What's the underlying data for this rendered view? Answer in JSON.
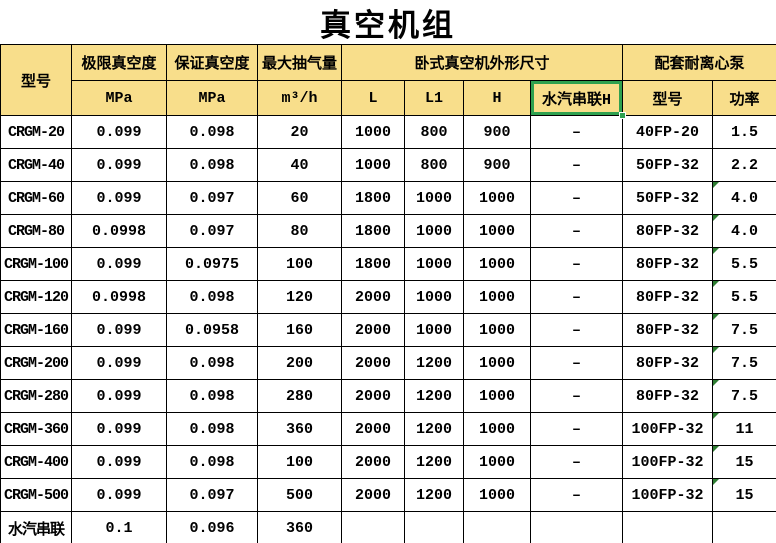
{
  "title": "真空机组",
  "colors": {
    "header_bg": "#F8DE8B",
    "grid_line": "#000000",
    "selection_green": "#2FA14F",
    "error_triangle_green": "#2E7D32",
    "text": "#000000"
  },
  "header": {
    "row1": {
      "model": "型号",
      "ultimate_vacuum": "极限真空度",
      "guaranteed_vacuum": "保证真空度",
      "max_capacity": "最大抽气量",
      "dimensions_group": "卧式真空机外形尺寸",
      "pump_group": "配套耐离心泵"
    },
    "row2": {
      "mpa_ultimate": "MPa",
      "mpa_guaranteed": "MPa",
      "m3_per_h": "m³/h",
      "L": "L",
      "L1": "L1",
      "H": "H",
      "steam_series_h": "水汽串联H",
      "pump_model": "型号",
      "pump_power": "功率"
    }
  },
  "selection": {
    "selected_cell": "水汽串联H"
  },
  "rows": [
    {
      "model": "CRGM-20",
      "ultimate": "0.099",
      "guaranteed": "0.098",
      "capacity": "20",
      "L": "1000",
      "L1": "800",
      "H": "900",
      "steamH": "–",
      "pump": "40FP-20",
      "power": "1.5",
      "flag": false
    },
    {
      "model": "CRGM-40",
      "ultimate": "0.099",
      "guaranteed": "0.098",
      "capacity": "40",
      "L": "1000",
      "L1": "800",
      "H": "900",
      "steamH": "–",
      "pump": "50FP-32",
      "power": "2.2",
      "flag": false
    },
    {
      "model": "CRGM-60",
      "ultimate": "0.099",
      "guaranteed": "0.097",
      "capacity": "60",
      "L": "1800",
      "L1": "1000",
      "H": "1000",
      "steamH": "–",
      "pump": "50FP-32",
      "power": "4.0",
      "flag": true
    },
    {
      "model": "CRGM-80",
      "ultimate": "0.0998",
      "guaranteed": "0.097",
      "capacity": "80",
      "L": "1800",
      "L1": "1000",
      "H": "1000",
      "steamH": "–",
      "pump": "80FP-32",
      "power": "4.0",
      "flag": true
    },
    {
      "model": "CRGM-100",
      "ultimate": "0.099",
      "guaranteed": "0.0975",
      "capacity": "100",
      "L": "1800",
      "L1": "1000",
      "H": "1000",
      "steamH": "–",
      "pump": "80FP-32",
      "power": "5.5",
      "flag": true
    },
    {
      "model": "CRGM-120",
      "ultimate": "0.0998",
      "guaranteed": "0.098",
      "capacity": "120",
      "L": "2000",
      "L1": "1000",
      "H": "1000",
      "steamH": "–",
      "pump": "80FP-32",
      "power": "5.5",
      "flag": true
    },
    {
      "model": "CRGM-160",
      "ultimate": "0.099",
      "guaranteed": "0.0958",
      "capacity": "160",
      "L": "2000",
      "L1": "1000",
      "H": "1000",
      "steamH": "–",
      "pump": "80FP-32",
      "power": "7.5",
      "flag": true
    },
    {
      "model": "CRGM-200",
      "ultimate": "0.099",
      "guaranteed": "0.098",
      "capacity": "200",
      "L": "2000",
      "L1": "1200",
      "H": "1000",
      "steamH": "–",
      "pump": "80FP-32",
      "power": "7.5",
      "flag": true
    },
    {
      "model": "CRGM-280",
      "ultimate": "0.099",
      "guaranteed": "0.098",
      "capacity": "280",
      "L": "2000",
      "L1": "1200",
      "H": "1000",
      "steamH": "–",
      "pump": "80FP-32",
      "power": "7.5",
      "flag": true
    },
    {
      "model": "CRGM-360",
      "ultimate": "0.099",
      "guaranteed": "0.098",
      "capacity": "360",
      "L": "2000",
      "L1": "1200",
      "H": "1000",
      "steamH": "–",
      "pump": "100FP-32",
      "power": "11",
      "flag": true
    },
    {
      "model": "CRGM-400",
      "ultimate": "0.099",
      "guaranteed": "0.098",
      "capacity": "100",
      "L": "2000",
      "L1": "1200",
      "H": "1000",
      "steamH": "–",
      "pump": "100FP-32",
      "power": "15",
      "flag": true
    },
    {
      "model": "CRGM-500",
      "ultimate": "0.099",
      "guaranteed": "0.097",
      "capacity": "500",
      "L": "2000",
      "L1": "1200",
      "H": "1000",
      "steamH": "–",
      "pump": "100FP-32",
      "power": "15",
      "flag": true
    },
    {
      "model": "水汽串联",
      "ultimate": "0.1",
      "guaranteed": "0.096",
      "capacity": "360",
      "L": "",
      "L1": "",
      "H": "",
      "steamH": "",
      "pump": "",
      "power": "",
      "flag": false
    }
  ]
}
